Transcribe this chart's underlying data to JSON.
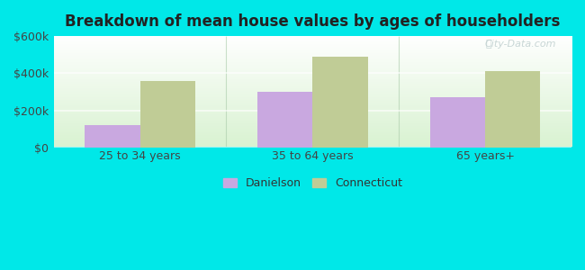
{
  "title": "Breakdown of mean house values by ages of householders",
  "categories": [
    "25 to 34 years",
    "35 to 64 years",
    "65 years+"
  ],
  "danielson_values": [
    120000,
    300000,
    270000
  ],
  "connecticut_values": [
    360000,
    490000,
    410000
  ],
  "bar_color_danielson": "#c9a8e0",
  "bar_color_connecticut": "#c0cc96",
  "background_outer": "#00e8e8",
  "ylim": [
    0,
    600000
  ],
  "yticks": [
    0,
    200000,
    400000,
    600000
  ],
  "ytick_labels": [
    "$0",
    "$200k",
    "$400k",
    "$600k"
  ],
  "legend_danielson": "Danielson",
  "legend_connecticut": "Connecticut",
  "bar_width": 0.32,
  "watermark": "City-Data.com"
}
